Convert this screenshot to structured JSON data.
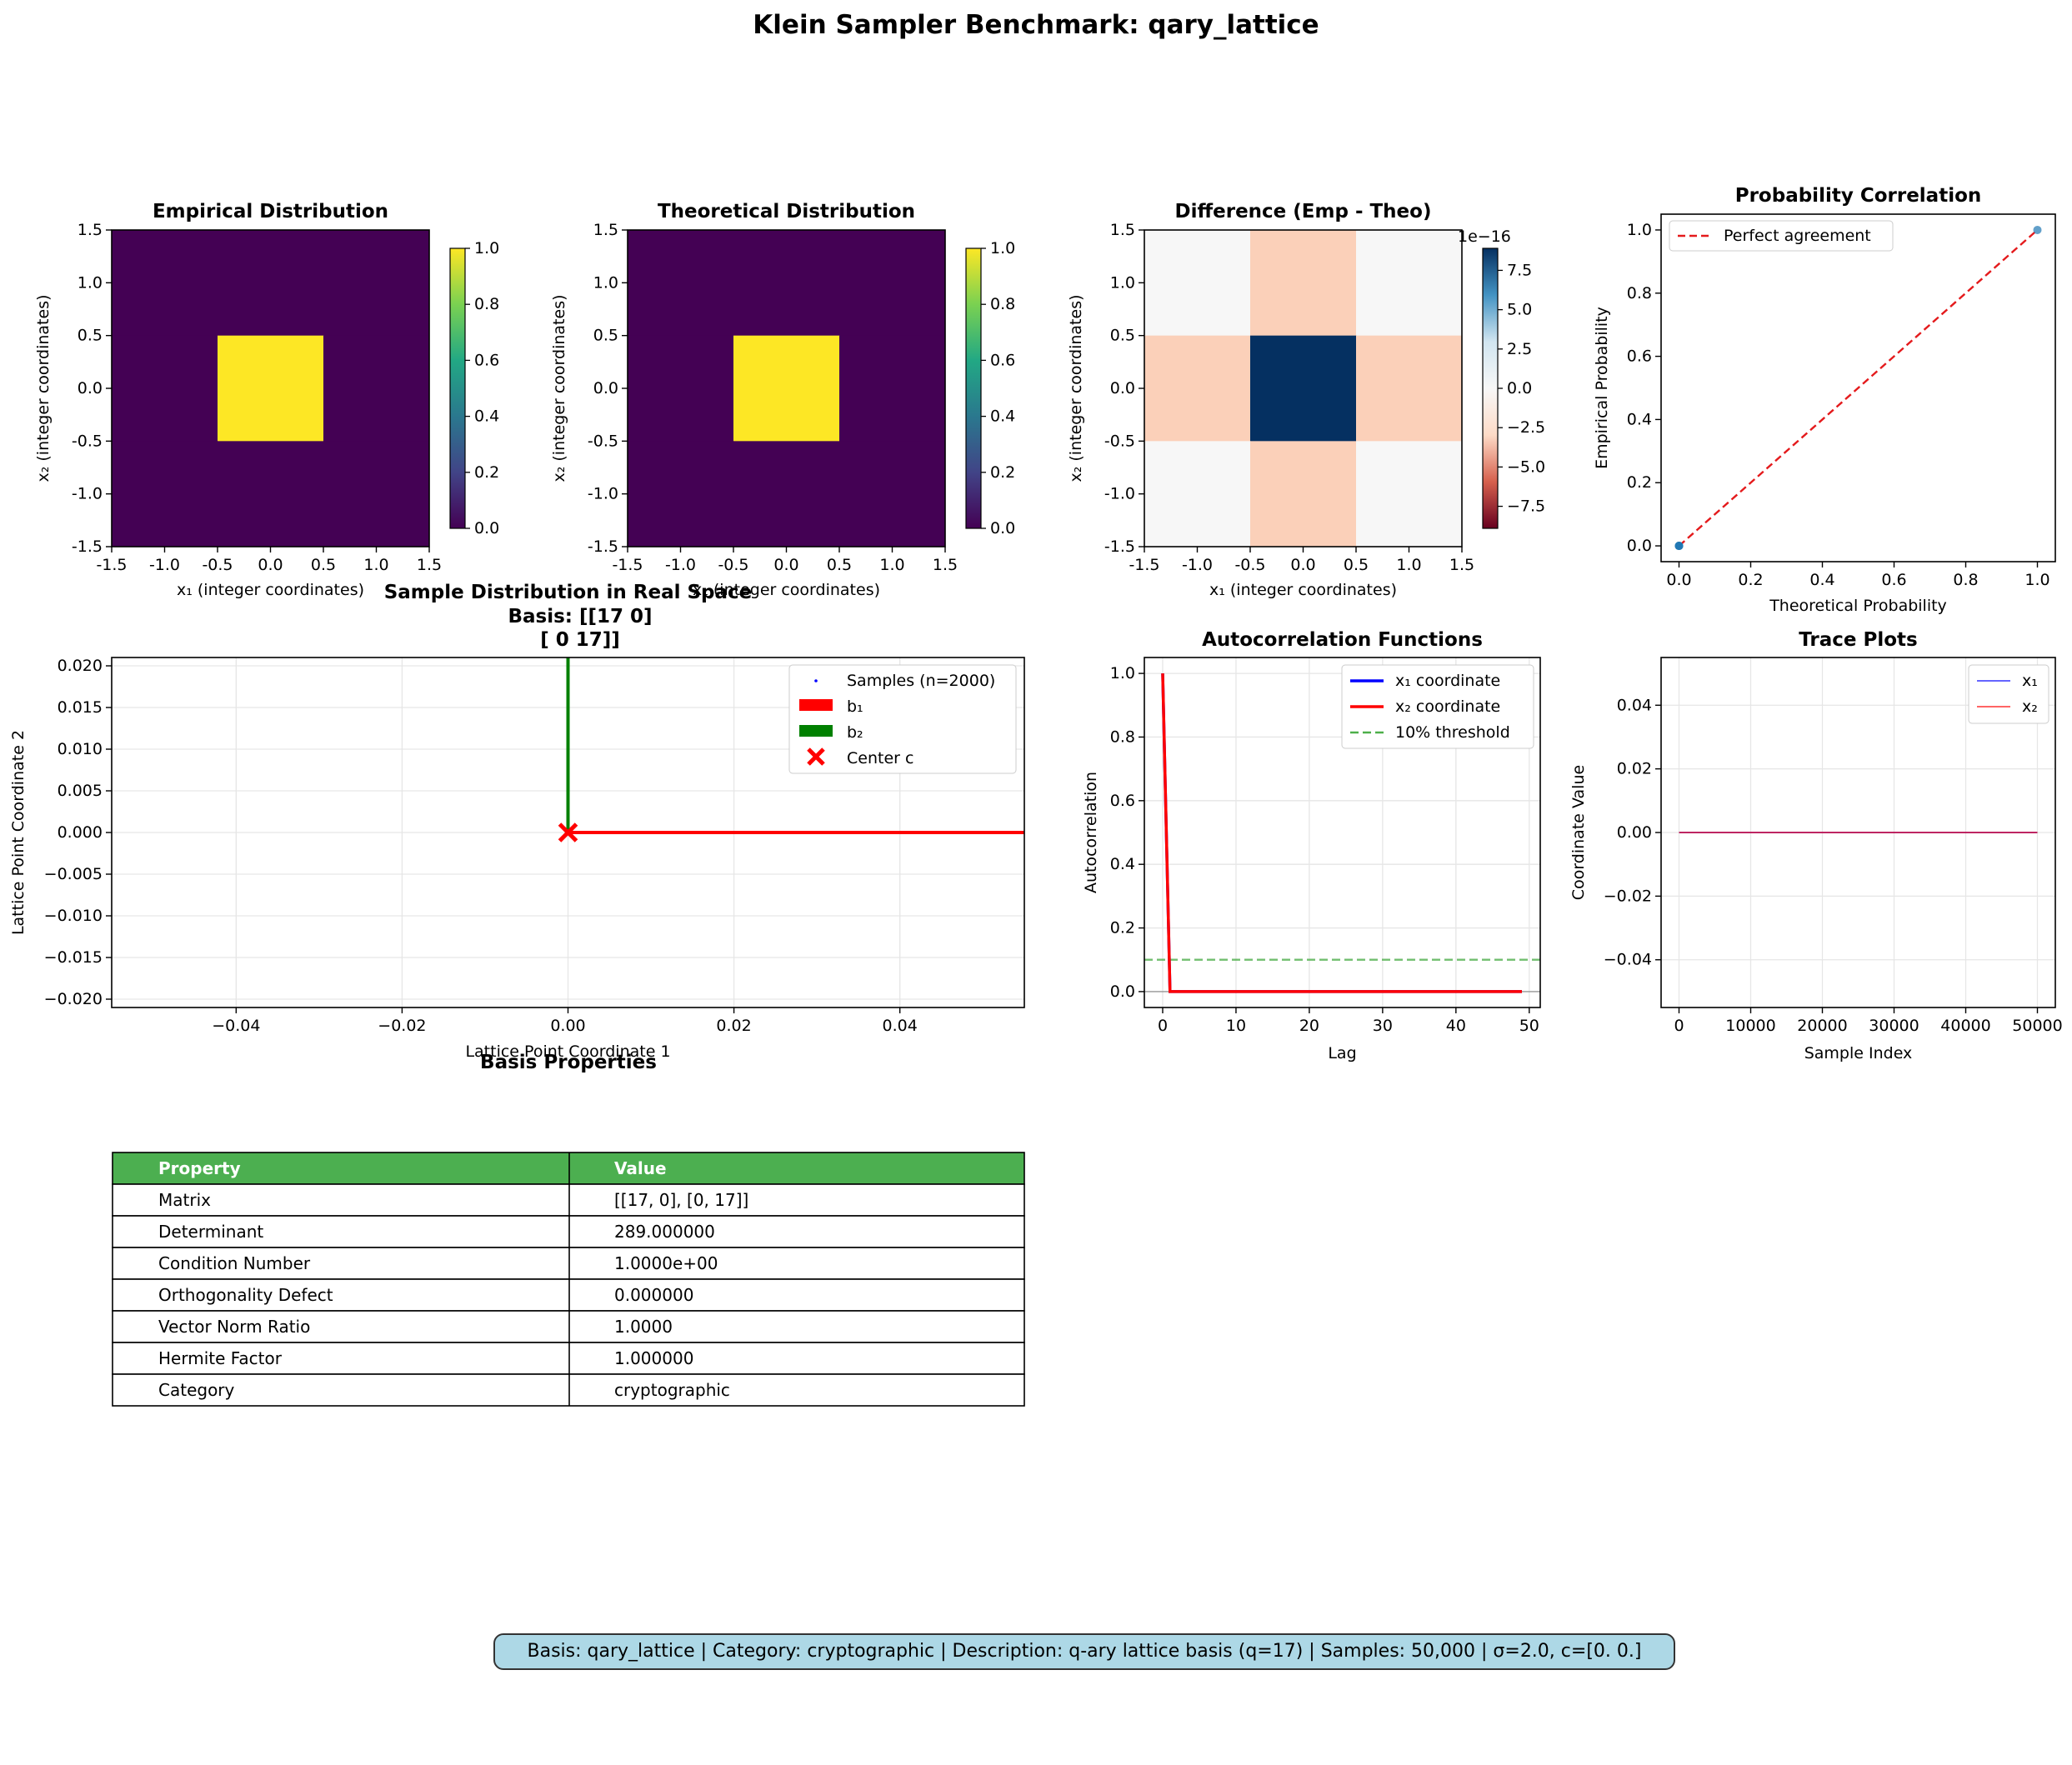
{
  "suptitle": "Klein Sampler Benchmark: qary_lattice",
  "heatmaps": [
    {
      "title": "Empirical Distribution",
      "xlabel": "x₁ (integer coordinates)",
      "ylabel": "x₂ (integer coordinates)",
      "extent": [
        -1.5,
        1.5,
        -1.5,
        1.5
      ],
      "grid": [
        [
          0,
          0,
          0
        ],
        [
          0,
          1,
          0
        ],
        [
          0,
          0,
          0
        ]
      ],
      "ticks": [
        "-1.5",
        "-1.0",
        "-0.5",
        "0.0",
        "0.5",
        "1.0",
        "1.5"
      ],
      "colorbar_ticks": [
        "0.0",
        "0.2",
        "0.4",
        "0.6",
        "0.8",
        "1.0"
      ],
      "colormap": "viridis"
    },
    {
      "title": "Theoretical Distribution",
      "xlabel": "x₁ (integer coordinates)",
      "ylabel": "x₂ (integer coordinates)",
      "extent": [
        -1.5,
        1.5,
        -1.5,
        1.5
      ],
      "grid": [
        [
          0,
          0,
          0
        ],
        [
          0,
          1,
          0
        ],
        [
          0,
          0,
          0
        ]
      ],
      "ticks": [
        "-1.5",
        "-1.0",
        "-0.5",
        "0.0",
        "0.5",
        "1.0",
        "1.5"
      ],
      "colorbar_ticks": [
        "0.0",
        "0.2",
        "0.4",
        "0.6",
        "0.8",
        "1.0"
      ],
      "colormap": "viridis"
    },
    {
      "title": "Difference (Emp - Theo)",
      "xlabel": "x₁ (integer coordinates)",
      "ylabel": "x₂ (integer coordinates)",
      "extent": [
        -1.5,
        1.5,
        -1.5,
        1.5
      ],
      "grid": [
        [
          0,
          -1.1e-16,
          0
        ],
        [
          -1.1e-16,
          8.9e-16,
          -1.1e-16
        ],
        [
          0,
          -1.1e-16,
          0
        ]
      ],
      "ticks": [
        "-1.5",
        "-1.0",
        "-0.5",
        "0.0",
        "0.5",
        "1.0",
        "1.5"
      ],
      "colorbar_ticks": [
        "−7.5",
        "−5.0",
        "−2.5",
        "0.0",
        "2.5",
        "5.0",
        "7.5"
      ],
      "colorbar_offset": "1e−16",
      "colormap": "RdBu"
    }
  ],
  "correlation": {
    "title": "Probability Correlation",
    "xlabel": "Theoretical Probability",
    "ylabel": "Empirical Probability",
    "legend": [
      "Perfect agreement"
    ],
    "points": [
      [
        0,
        0
      ],
      [
        0,
        0
      ],
      [
        0,
        0
      ],
      [
        0,
        0
      ],
      [
        1,
        1
      ]
    ],
    "ticks": [
      "0.0",
      "0.2",
      "0.4",
      "0.6",
      "0.8",
      "1.0"
    ]
  },
  "realspace": {
    "title_lines": [
      "Sample Distribution in Real Space",
      "Basis: [[17  0]",
      "[ 0 17]]"
    ],
    "xlabel": "Lattice Point Coordinate 1",
    "ylabel": "Lattice Point Coordinate 2",
    "xticks": [
      "−0.04",
      "−0.02",
      "0.00",
      "0.02",
      "0.04"
    ],
    "yticks": [
      "−0.020",
      "−0.015",
      "−0.010",
      "−0.005",
      "0.000",
      "0.005",
      "0.010",
      "0.015",
      "0.020"
    ],
    "legend": [
      "Samples (n=2000)",
      "b₁",
      "b₂",
      "Center c"
    ],
    "center": [
      0,
      0
    ]
  },
  "autocorr": {
    "title": "Autocorrelation Functions",
    "xlabel": "Lag",
    "ylabel": "Autocorrelation",
    "legend": [
      "x₁ coordinate",
      "x₂ coordinate",
      "10% threshold"
    ],
    "threshold": 0.1,
    "xticks": [
      "0",
      "10",
      "20",
      "30",
      "40",
      "50"
    ],
    "yticks": [
      "0.0",
      "0.2",
      "0.4",
      "0.6",
      "0.8",
      "1.0"
    ]
  },
  "trace": {
    "title": "Trace Plots",
    "xlabel": "Sample Index",
    "ylabel": "Coordinate Value",
    "legend": [
      "x₁",
      "x₂"
    ],
    "xticks": [
      "0",
      "10000",
      "20000",
      "30000",
      "40000",
      "50000"
    ],
    "yticks": [
      "−0.04",
      "−0.02",
      "0.00",
      "0.02",
      "0.04"
    ]
  },
  "table": {
    "title": "Basis Properties",
    "header": [
      "Property",
      "Value"
    ],
    "rows": [
      [
        "Matrix",
        "[[17, 0], [0, 17]]"
      ],
      [
        "Determinant",
        "289.000000"
      ],
      [
        "Condition Number",
        "1.0000e+00"
      ],
      [
        "Orthogonality Defect",
        "0.000000"
      ],
      [
        "Vector Norm Ratio",
        "1.0000"
      ],
      [
        "Hermite Factor",
        "1.000000"
      ],
      [
        "Category",
        "cryptographic"
      ]
    ]
  },
  "footer": "Basis: qary_lattice | Category: cryptographic | Description: q-ary lattice basis (q=17) | Samples: 50,000 | σ=2.0, c=[0. 0.]",
  "chart_data": [
    {
      "type": "heatmap",
      "title": "Empirical Distribution",
      "x": [
        -1,
        0,
        1
      ],
      "y": [
        -1,
        0,
        1
      ],
      "values": [
        [
          0,
          0,
          0
        ],
        [
          0,
          1,
          0
        ],
        [
          0,
          0,
          0
        ]
      ],
      "zlim": [
        0,
        1
      ]
    },
    {
      "type": "heatmap",
      "title": "Theoretical Distribution",
      "x": [
        -1,
        0,
        1
      ],
      "y": [
        -1,
        0,
        1
      ],
      "values": [
        [
          0,
          0,
          0
        ],
        [
          0,
          1,
          0
        ],
        [
          0,
          0,
          0
        ]
      ],
      "zlim": [
        0,
        1
      ]
    },
    {
      "type": "heatmap",
      "title": "Difference (Emp - Theo)",
      "x": [
        -1,
        0,
        1
      ],
      "y": [
        -1,
        0,
        1
      ],
      "values": [
        [
          0,
          -1.1e-16,
          0
        ],
        [
          -1.1e-16,
          8.9e-16,
          -1.1e-16
        ],
        [
          0,
          -1.1e-16,
          0
        ]
      ],
      "zlim": [
        -8.9e-16,
        8.9e-16
      ]
    },
    {
      "type": "scatter",
      "title": "Probability Correlation",
      "x": [
        0,
        1
      ],
      "y": [
        0,
        1
      ],
      "xlabel": "Theoretical Probability",
      "ylabel": "Empirical Probability",
      "series": [
        {
          "name": "Perfect agreement",
          "x": [
            0,
            1
          ],
          "y": [
            0,
            1
          ]
        }
      ]
    },
    {
      "type": "scatter",
      "title": "Sample Distribution in Real Space",
      "xlim": [
        -0.055,
        0.055
      ],
      "ylim": [
        -0.021,
        0.021
      ],
      "xlabel": "Lattice Point Coordinate 1",
      "ylabel": "Lattice Point Coordinate 2",
      "series": [
        {
          "name": "Samples (n=2000)",
          "x": [
            0
          ],
          "y": [
            0
          ]
        },
        {
          "name": "b₁",
          "vector": [
            17,
            0
          ]
        },
        {
          "name": "b₂",
          "vector": [
            0,
            17
          ]
        },
        {
          "name": "Center c",
          "x": [
            0
          ],
          "y": [
            0
          ]
        }
      ]
    },
    {
      "type": "line",
      "title": "Autocorrelation Functions",
      "xlabel": "Lag",
      "ylabel": "Autocorrelation",
      "xlim": [
        -2.5,
        51.5
      ],
      "ylim": [
        -0.05,
        1.05
      ],
      "series": [
        {
          "name": "x₁ coordinate",
          "x": [
            0,
            1,
            49
          ],
          "y": [
            1,
            0,
            0
          ]
        },
        {
          "name": "x₂ coordinate",
          "x": [
            0,
            1,
            49
          ],
          "y": [
            1,
            0,
            0
          ]
        },
        {
          "name": "10% threshold",
          "y_const": 0.1
        }
      ]
    },
    {
      "type": "line",
      "title": "Trace Plots",
      "xlabel": "Sample Index",
      "ylabel": "Coordinate Value",
      "xlim": [
        -2500,
        52500
      ],
      "ylim": [
        -0.055,
        0.055
      ],
      "series": [
        {
          "name": "x₁",
          "x": [
            0,
            50000
          ],
          "y": [
            0,
            0
          ]
        },
        {
          "name": "x₂",
          "x": [
            0,
            50000
          ],
          "y": [
            0,
            0
          ]
        }
      ]
    }
  ]
}
